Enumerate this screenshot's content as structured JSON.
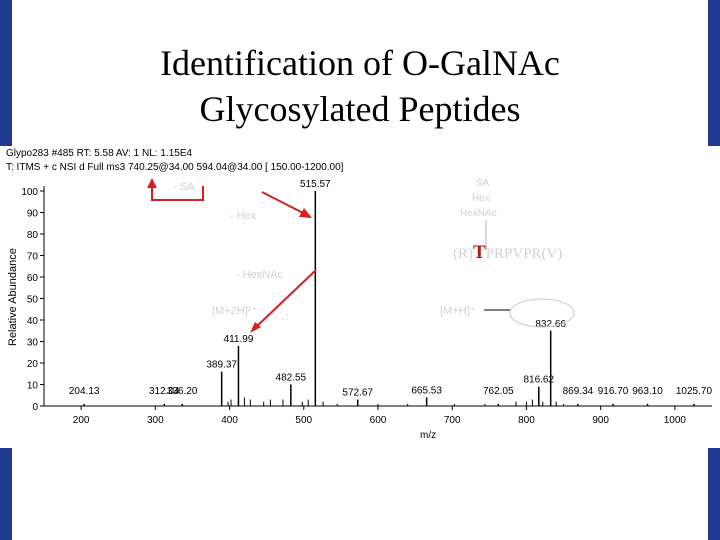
{
  "slide": {
    "title_line1": "Identification of O-GalNAc",
    "title_line2": "Glycosylated Peptides",
    "frame_color": "#1f3a93"
  },
  "header": {
    "line1": "Glypo283 #485  RT: 5.58  AV: 1  NL: 1.15E4",
    "line2": "T: ITMS + c NSI d Full ms3 740.25@34.00 594.04@34.00 [ 150.00-1200.00]"
  },
  "annotations": {
    "minus_sa": "- SA",
    "minus_hex": "- Hex",
    "minus_hexnac": "- HexNAc",
    "m2h": "[M+2H]²⁺",
    "mh": "[M+H]⁺",
    "glycan_sa": "SA",
    "glycan_hex": "Hex",
    "glycan_hexnac": "HexNAc",
    "seq_prefix": "(R)",
    "seq_site": "T",
    "seq_suffix": "PRPVPR(V)",
    "arrow_color": "#d42020",
    "site_color": "#b01818"
  },
  "chart_data": {
    "type": "bar",
    "title": "",
    "xlabel": "m/z",
    "ylabel": "Relative Abundance",
    "xlim": [
      150,
      1050
    ],
    "ylim": [
      0,
      100
    ],
    "xticks": [
      200,
      300,
      400,
      500,
      600,
      700,
      800,
      900,
      1000
    ],
    "yticks": [
      0,
      10,
      20,
      30,
      40,
      50,
      60,
      70,
      80,
      90,
      100
    ],
    "peaks": [
      {
        "mz": 204.13,
        "rel": 1,
        "label": "204.13"
      },
      {
        "mz": 312.04,
        "rel": 1,
        "label": "312.04"
      },
      {
        "mz": 336.2,
        "rel": 1,
        "label": "336.20"
      },
      {
        "mz": 389.37,
        "rel": 16,
        "label": "389.37"
      },
      {
        "mz": 411.99,
        "rel": 28,
        "label": "411.99"
      },
      {
        "mz": 482.55,
        "rel": 10,
        "label": "482.55"
      },
      {
        "mz": 515.57,
        "rel": 100,
        "label": "515.57"
      },
      {
        "mz": 572.67,
        "rel": 3,
        "label": "572.67"
      },
      {
        "mz": 665.53,
        "rel": 4,
        "label": "665.53"
      },
      {
        "mz": 762.05,
        "rel": 1,
        "label": "762.05"
      },
      {
        "mz": 816.62,
        "rel": 9,
        "label": "816.62"
      },
      {
        "mz": 832.66,
        "rel": 35,
        "label": "832.66"
      },
      {
        "mz": 869.34,
        "rel": 1,
        "label": "869.34"
      },
      {
        "mz": 916.7,
        "rel": 1,
        "label": "916.70"
      },
      {
        "mz": 963.1,
        "rel": 1,
        "label": "963.10"
      },
      {
        "mz": 1025.7,
        "rel": 1,
        "label": "1025.70"
      }
    ],
    "noise": [
      {
        "mz": 398,
        "rel": 2
      },
      {
        "mz": 402,
        "rel": 3
      },
      {
        "mz": 420,
        "rel": 4
      },
      {
        "mz": 428,
        "rel": 3
      },
      {
        "mz": 446,
        "rel": 2
      },
      {
        "mz": 455,
        "rel": 3
      },
      {
        "mz": 472,
        "rel": 3
      },
      {
        "mz": 498,
        "rel": 2
      },
      {
        "mz": 506,
        "rel": 3
      },
      {
        "mz": 526,
        "rel": 2
      },
      {
        "mz": 545,
        "rel": 1
      },
      {
        "mz": 600,
        "rel": 1
      },
      {
        "mz": 640,
        "rel": 1
      },
      {
        "mz": 703,
        "rel": 1
      },
      {
        "mz": 744,
        "rel": 1
      },
      {
        "mz": 786,
        "rel": 2
      },
      {
        "mz": 800,
        "rel": 2
      },
      {
        "mz": 808,
        "rel": 3
      },
      {
        "mz": 822,
        "rel": 2
      },
      {
        "mz": 840,
        "rel": 2
      },
      {
        "mz": 850,
        "rel": 1
      }
    ]
  }
}
